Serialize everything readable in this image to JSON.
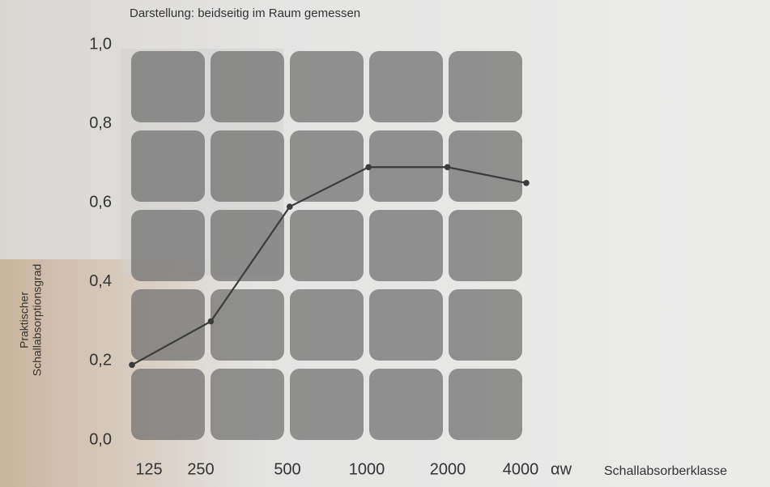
{
  "chart_data": {
    "type": "line",
    "title": "Darstellung: beidseitig im Raum gemessen",
    "y_label": [
      "Praktischer",
      "Schallabsorptionsgrad"
    ],
    "x_symbol": "αw",
    "x_label": "Schallabsorberklasse",
    "categories": [
      "125",
      "250",
      "500",
      "1000",
      "2000",
      "4000"
    ],
    "values": [
      0.19,
      0.3,
      0.59,
      0.69,
      0.69,
      0.65
    ],
    "color": "#3c3c3c",
    "ylim": [
      0,
      1
    ],
    "yticks": [
      {
        "value": 0,
        "label": "0,0"
      },
      {
        "value": 0.2,
        "label": "0,2"
      },
      {
        "value": 0.4,
        "label": "0,4"
      },
      {
        "value": 0.6,
        "label": "0,6"
      },
      {
        "value": 0.8,
        "label": "0,8"
      },
      {
        "value": 1,
        "label": "1,0"
      }
    ]
  }
}
